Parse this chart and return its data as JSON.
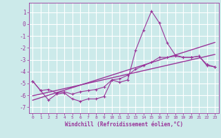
{
  "xlabel": "Windchill (Refroidissement éolien,°C)",
  "background_color": "#cceaea",
  "line_color": "#993399",
  "hours": [
    0,
    1,
    2,
    3,
    4,
    5,
    6,
    7,
    8,
    9,
    10,
    11,
    12,
    13,
    14,
    15,
    16,
    17,
    18,
    19,
    20,
    21,
    22,
    23
  ],
  "windchill": [
    -4.8,
    -5.6,
    -6.4,
    -5.9,
    -5.8,
    -6.3,
    -6.5,
    -6.3,
    -6.3,
    -6.1,
    -4.7,
    -4.9,
    -4.7,
    -2.2,
    -0.5,
    1.1,
    0.1,
    -1.6,
    -2.6,
    -2.8,
    -2.8,
    -2.7,
    -3.5,
    -3.6
  ],
  "temp": [
    -4.8,
    -5.6,
    -5.5,
    -5.8,
    -5.7,
    -5.9,
    -5.7,
    -5.6,
    -5.5,
    -5.3,
    -4.7,
    -4.6,
    -4.3,
    -3.8,
    -3.5,
    -3.2,
    -2.8,
    -2.8,
    -2.7,
    -2.8,
    -2.8,
    -2.7,
    -3.4,
    -3.6
  ],
  "ylim": [
    -7.5,
    1.8
  ],
  "xlim": [
    -0.5,
    23.5
  ],
  "yticks": [
    1,
    0,
    -1,
    -2,
    -3,
    -4,
    -5,
    -6,
    -7
  ],
  "xticks": [
    0,
    1,
    2,
    3,
    4,
    5,
    6,
    7,
    8,
    9,
    10,
    11,
    12,
    13,
    14,
    15,
    16,
    17,
    18,
    19,
    20,
    21,
    22,
    23
  ]
}
